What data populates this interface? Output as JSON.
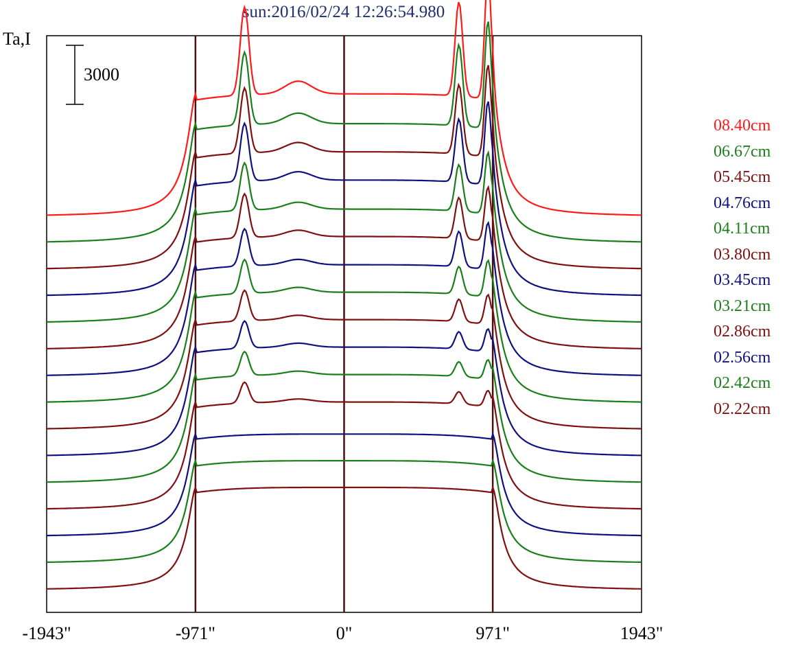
{
  "title": "sun:2016/02/24 12:26:54.980",
  "ylabel": "Ta,I",
  "scale_bar_label": "3000",
  "chart_data": {
    "type": "line",
    "title": "sun:2016/02/24 12:26:54.980",
    "ylabel": "Ta,I",
    "xlabel": "",
    "x_ticks": [
      "-1943\"",
      "-971\"",
      "0\"",
      "971\"",
      "1943\""
    ],
    "x_tick_values": [
      -1943,
      -971,
      0,
      971,
      1943
    ],
    "xlim": [
      -1943,
      1943
    ],
    "vertical_lines": [
      -971,
      0,
      971
    ],
    "scale_bar_value": 3000,
    "legend_placement": "right",
    "legend": [
      {
        "label": "08.40cm",
        "color": "#ff1a1a"
      },
      {
        "label": "06.67cm",
        "color": "#1a7f1a"
      },
      {
        "label": "05.45cm",
        "color": "#7f1010"
      },
      {
        "label": "04.76cm",
        "color": "#10107f"
      },
      {
        "label": "04.11cm",
        "color": "#1a7f1a"
      },
      {
        "label": "03.80cm",
        "color": "#7f1010"
      },
      {
        "label": "03.45cm",
        "color": "#10107f"
      },
      {
        "label": "03.21cm",
        "color": "#1a7f1a"
      },
      {
        "label": "02.86cm",
        "color": "#7f1010"
      },
      {
        "label": "02.56cm",
        "color": "#10107f"
      },
      {
        "label": "02.42cm",
        "color": "#1a7f1a"
      },
      {
        "label": "02.22cm",
        "color": "#7f1010"
      }
    ],
    "series": [
      {
        "color": "#ff1a1a",
        "peak_left": 1.3,
        "peak_right": 1.7
      },
      {
        "color": "#1a7f1a",
        "peak_left": 1.1,
        "peak_right": 1.5
      },
      {
        "color": "#7f1010",
        "peak_left": 1.0,
        "peak_right": 1.3
      },
      {
        "color": "#10107f",
        "peak_left": 0.9,
        "peak_right": 1.2
      },
      {
        "color": "#1a7f1a",
        "peak_left": 0.75,
        "peak_right": 0.9
      },
      {
        "color": "#7f1010",
        "peak_left": 0.7,
        "peak_right": 0.8
      },
      {
        "color": "#10107f",
        "peak_left": 0.6,
        "peak_right": 0.7
      },
      {
        "color": "#1a7f1a",
        "peak_left": 0.55,
        "peak_right": 0.55
      },
      {
        "color": "#7f1010",
        "peak_left": 0.5,
        "peak_right": 0.45
      },
      {
        "color": "#10107f",
        "peak_left": 0.45,
        "peak_right": 0.35
      },
      {
        "color": "#1a7f1a",
        "peak_left": 0.4,
        "peak_right": 0.3
      },
      {
        "color": "#7f1010",
        "peak_left": 0.35,
        "peak_right": 0.25
      },
      {
        "color": "#10107f",
        "peak_left": 0.0,
        "peak_right": 0.0
      },
      {
        "color": "#1a7f1a",
        "peak_left": 0.0,
        "peak_right": 0.0
      },
      {
        "color": "#7f1010",
        "peak_left": 0.0,
        "peak_right": 0.0
      }
    ]
  }
}
